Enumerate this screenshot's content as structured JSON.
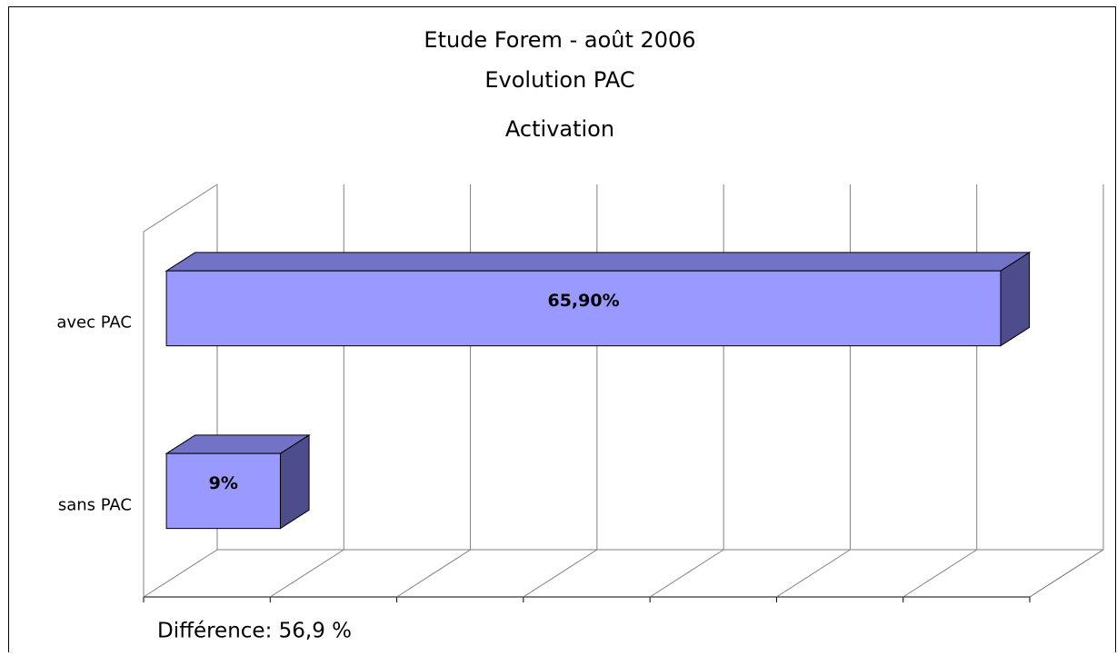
{
  "chart_data": {
    "type": "bar3d_horizontal",
    "title": [
      "Etude Forem - août 2006",
      "Evolution PAC",
      "Activation"
    ],
    "categories": [
      "avec PAC",
      "sans PAC"
    ],
    "values": [
      65.9,
      9
    ],
    "value_labels": [
      "65,90%",
      "9%"
    ],
    "color": "#9999ff",
    "xlim": [
      0,
      70
    ],
    "xticks": [
      0,
      10,
      20,
      30,
      40,
      50,
      60,
      70
    ],
    "grid": true,
    "annotation": "Différence: 56,9 %"
  }
}
